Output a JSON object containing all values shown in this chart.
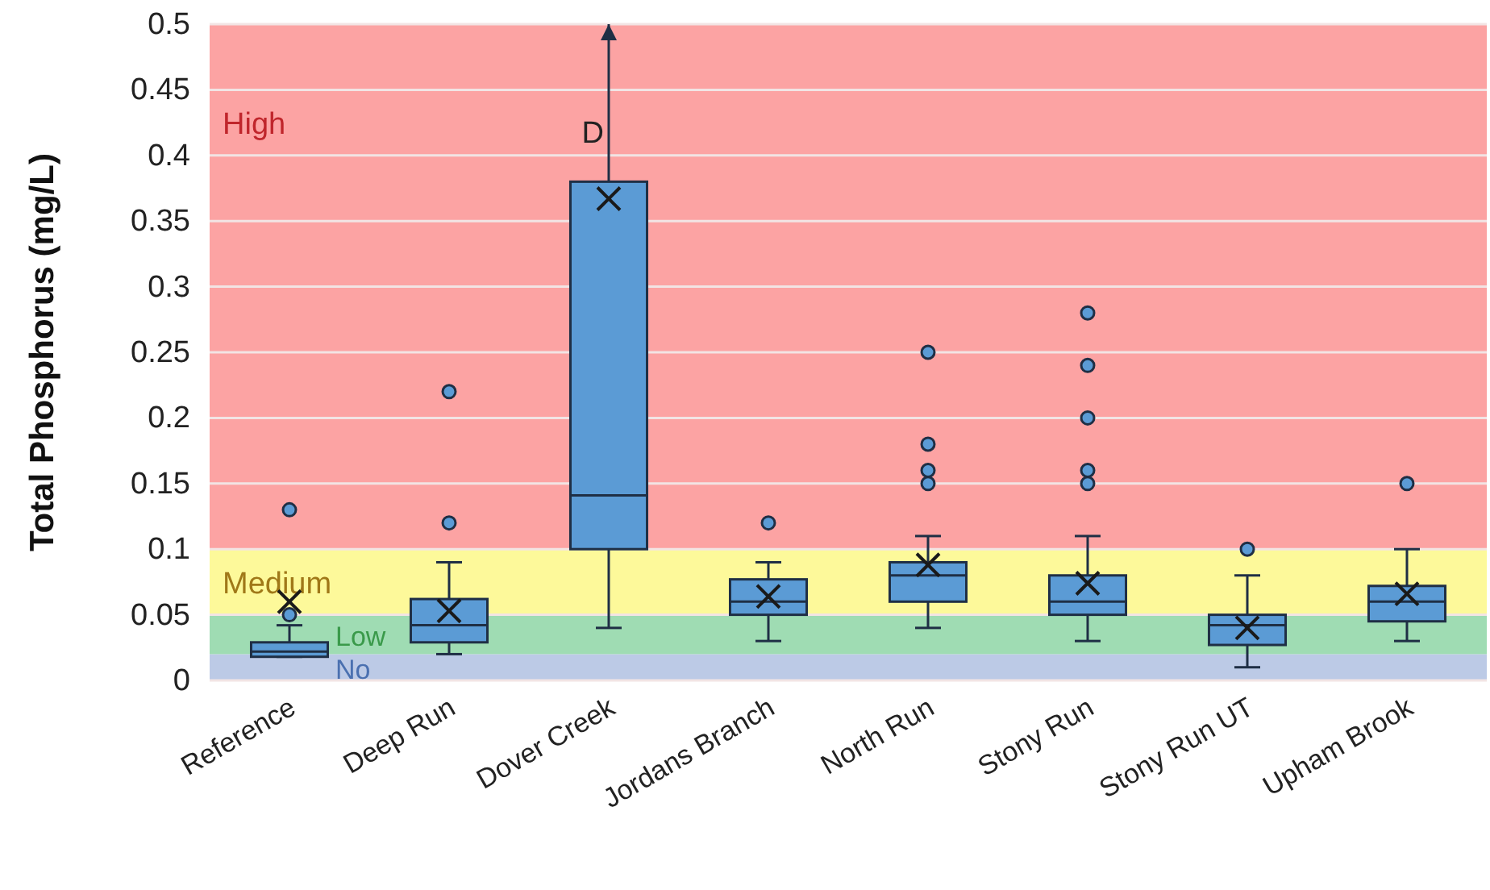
{
  "chart_data": {
    "type": "box",
    "ylabel": "Total Phosphorus (mg/L)",
    "categories": [
      "Reference",
      "Deep Run",
      "Dover Creek",
      "Jordans Branch",
      "North Run",
      "Stony Run",
      "Stony Run UT",
      "Upham Brook"
    ],
    "ylim": [
      0,
      0.5
    ],
    "yticks": [
      0,
      0.05,
      0.1,
      0.15,
      0.2,
      0.25,
      0.3,
      0.35,
      0.4,
      0.45,
      0.5
    ],
    "grid": "y",
    "bands": [
      {
        "axis": "y",
        "from": 0,
        "to": 0.02,
        "label": "No",
        "color": "#bccae6"
      },
      {
        "axis": "y",
        "from": 0.02,
        "to": 0.05,
        "label": "Low",
        "color": "#9fdcb3"
      },
      {
        "axis": "y",
        "from": 0.05,
        "to": 0.1,
        "label": "Medium",
        "color": "#fdf99a"
      },
      {
        "axis": "y",
        "from": 0.1,
        "to": 0.5,
        "label": "High",
        "color": "#fca3a3"
      }
    ],
    "annotations": [
      {
        "text": "D",
        "x": "Dover Creek",
        "y": 0.41
      }
    ],
    "series": [
      {
        "color": "#5b9bd5",
        "boxes": [
          {
            "low": 0.018,
            "q1": 0.018,
            "median": 0.022,
            "q3": 0.029,
            "high": 0.042,
            "mean": 0.06,
            "outliers": [
              0.13,
              0.05
            ]
          },
          {
            "low": 0.02,
            "q1": 0.029,
            "median": 0.042,
            "q3": 0.062,
            "high": 0.09,
            "mean": 0.053,
            "outliers": [
              0.22,
              0.12
            ]
          },
          {
            "low": 0.04,
            "q1": 0.1,
            "median": 0.141,
            "q3": 0.38,
            "high": 0.5,
            "mean": 0.367
          },
          {
            "low": 0.03,
            "q1": 0.05,
            "median": 0.06,
            "q3": 0.077,
            "high": 0.09,
            "mean": 0.064,
            "outliers": [
              0.12
            ]
          },
          {
            "low": 0.04,
            "q1": 0.06,
            "median": 0.08,
            "q3": 0.09,
            "high": 0.11,
            "mean": 0.088,
            "outliers": [
              0.25,
              0.18,
              0.16,
              0.15
            ]
          },
          {
            "low": 0.03,
            "q1": 0.05,
            "median": 0.06,
            "q3": 0.08,
            "high": 0.11,
            "mean": 0.074,
            "outliers": [
              0.28,
              0.24,
              0.2,
              0.16,
              0.15
            ]
          },
          {
            "low": 0.01,
            "q1": 0.027,
            "median": 0.042,
            "q3": 0.05,
            "high": 0.08,
            "mean": 0.04,
            "outliers": [
              0.1
            ]
          },
          {
            "low": 0.03,
            "q1": 0.045,
            "median": 0.06,
            "q3": 0.072,
            "high": 0.1,
            "mean": 0.066,
            "outliers": [
              0.15
            ]
          }
        ]
      }
    ]
  }
}
